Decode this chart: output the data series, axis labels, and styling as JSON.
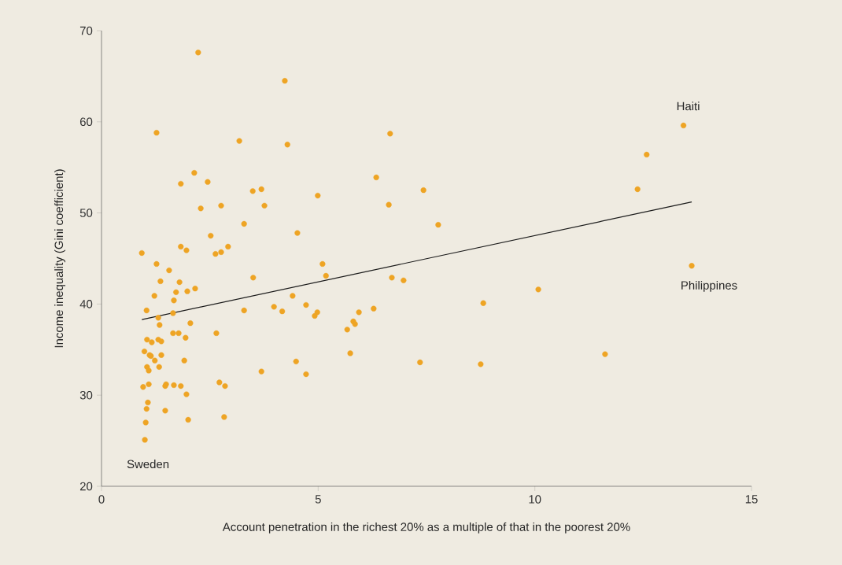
{
  "chart_data": {
    "type": "scatter",
    "xlabel": "Account penetration in the richest 20% as a multiple of that in the poorest 20%",
    "ylabel": "Income inequality  (Gini coefficient)",
    "xlim": [
      0,
      15
    ],
    "ylim": [
      20,
      70
    ],
    "xticks": [
      0,
      5,
      10,
      15
    ],
    "yticks": [
      20,
      30,
      40,
      50,
      60,
      70
    ],
    "grid": false,
    "marker": "circle",
    "series": [
      {
        "color": "#eea424",
        "x": [
          2.23,
          4.23,
          1.27,
          3.18,
          4.29,
          6.66,
          12.58,
          13.43,
          2.14,
          1.83,
          2.45,
          6.34,
          7.43,
          12.37,
          3.49,
          3.69,
          4.99,
          2.29,
          2.76,
          3.76,
          6.63,
          3.29,
          7.77,
          2.52,
          4.52,
          1.83,
          2.92,
          1.96,
          2.63,
          2.76,
          0.93,
          1.27,
          5.1,
          13.62,
          1.56,
          1.36,
          3.5,
          5.18,
          6.7,
          6.97,
          1.8,
          2.16,
          1.98,
          10.08,
          1.22,
          1.72,
          1.67,
          4.41,
          8.81,
          3.98,
          3.29,
          4.17,
          4.72,
          1.04,
          1.65,
          5.94,
          6.28,
          4.98,
          4.92,
          5.81,
          5.85,
          5.67,
          1.31,
          2.05,
          1.34,
          1.78,
          1.65,
          2.65,
          1.05,
          1.31,
          1.16,
          1.38,
          1.94,
          5.74,
          0.99,
          1.11,
          1.14,
          1.38,
          11.62,
          1.23,
          1.91,
          4.49,
          7.35,
          8.75,
          1.05,
          1.33,
          1.09,
          3.69,
          4.72,
          1.09,
          2.72,
          1.49,
          1.47,
          1.67,
          1.83,
          2.85,
          0.96,
          1.96,
          1.07,
          1.04,
          1.47,
          2.83,
          2.0,
          1.02,
          1.0
        ],
        "values": [
          67.6,
          64.5,
          58.8,
          57.9,
          57.5,
          58.7,
          56.4,
          59.6,
          54.4,
          53.2,
          53.4,
          53.9,
          52.5,
          52.6,
          52.4,
          52.6,
          51.9,
          50.5,
          50.8,
          50.8,
          50.9,
          48.8,
          48.7,
          47.5,
          47.8,
          46.3,
          46.3,
          45.9,
          45.5,
          45.7,
          45.6,
          44.4,
          44.4,
          44.2,
          43.7,
          42.5,
          42.9,
          43.1,
          42.9,
          42.6,
          42.4,
          41.7,
          41.4,
          41.6,
          40.9,
          41.3,
          40.4,
          40.9,
          40.1,
          39.7,
          39.3,
          39.2,
          39.9,
          39.3,
          39.0,
          39.1,
          39.5,
          39.1,
          38.7,
          38.1,
          37.8,
          37.2,
          38.5,
          37.9,
          37.7,
          36.8,
          36.8,
          36.8,
          36.1,
          36.1,
          35.8,
          35.9,
          36.3,
          34.6,
          34.8,
          34.4,
          34.3,
          34.4,
          34.5,
          33.8,
          33.8,
          33.7,
          33.6,
          33.4,
          33.1,
          33.1,
          32.7,
          32.6,
          32.3,
          31.2,
          31.4,
          31.2,
          31.0,
          31.1,
          31.0,
          31.0,
          30.9,
          30.1,
          29.2,
          28.5,
          28.3,
          27.6,
          27.3,
          27.0,
          25.1
        ]
      },
      {
        "type": "line",
        "color": "#1a1a1a",
        "marker": "none",
        "x": [
          0.93,
          13.62
        ],
        "values": [
          38.3,
          51.2
        ]
      }
    ],
    "annotations": [
      {
        "text": "Haiti",
        "x": 13.43,
        "y": 59.6
      },
      {
        "text": "Philippines",
        "x": 13.62,
        "y": 44.2
      },
      {
        "text": "Sweden",
        "x": 1.0,
        "y": 25.1
      }
    ]
  }
}
